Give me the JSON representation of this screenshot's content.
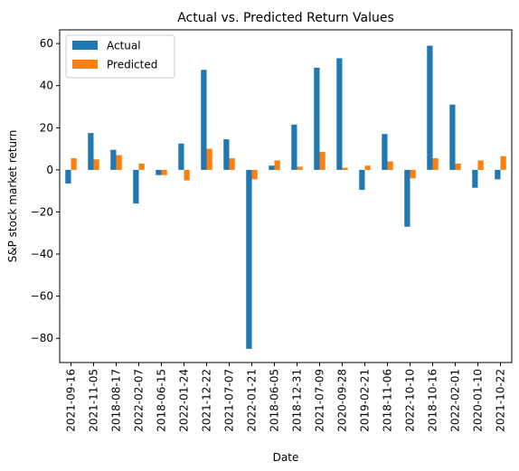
{
  "chart_data": {
    "type": "bar",
    "title": "Actual vs. Predicted Return Values",
    "xlabel": "Date",
    "ylabel": "S&P stock market return",
    "categories": [
      "2021-09-16",
      "2021-11-05",
      "2018-08-17",
      "2022-02-07",
      "2018-06-15",
      "2022-01-24",
      "2021-12-22",
      "2021-07-07",
      "2022-01-21",
      "2018-06-05",
      "2018-12-31",
      "2021-07-09",
      "2020-09-28",
      "2019-02-21",
      "2018-11-06",
      "2022-10-10",
      "2018-10-16",
      "2022-02-01",
      "2020-01-10",
      "2021-10-22"
    ],
    "series": [
      {
        "name": "Actual",
        "color": "#1f77b4",
        "values": [
          -6.5,
          17.5,
          9.5,
          -16,
          -2.5,
          12.5,
          47.5,
          14.5,
          -85,
          2,
          21.5,
          48.5,
          53,
          -9.5,
          17,
          -27,
          59,
          31,
          -8.5,
          -4.5
        ]
      },
      {
        "name": "Predicted",
        "color": "#ff7f0e",
        "values": [
          5.5,
          5,
          7,
          3,
          -2.5,
          -5,
          10,
          5.5,
          -4.5,
          4.5,
          1.5,
          8.5,
          1,
          2,
          4,
          -4,
          5.5,
          3,
          4.5,
          6.5
        ]
      }
    ],
    "yticks": [
      60,
      40,
      20,
      0,
      -20,
      -40,
      -60,
      -80
    ],
    "ylim": [
      -91.5,
      66.5
    ],
    "grid": false,
    "legend": "top-left"
  }
}
